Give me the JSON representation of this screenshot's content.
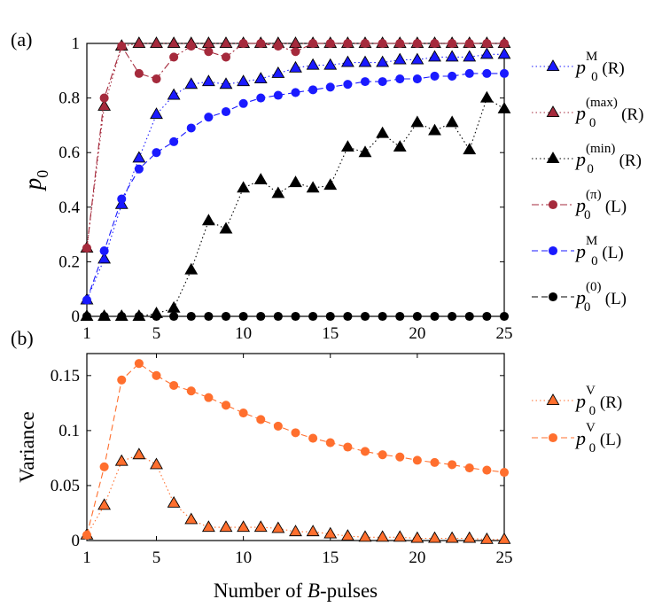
{
  "chart_data": [
    {
      "type": "line",
      "panel_label": "(a)",
      "xlabel": "",
      "ylabel_main": "p",
      "ylabel_sub": "0",
      "xlim": [
        1,
        25
      ],
      "ylim": [
        0,
        1
      ],
      "xticks": [
        1,
        5,
        10,
        15,
        20,
        25
      ],
      "yticks": [
        0,
        0.2,
        0.4,
        0.6,
        0.8,
        1
      ],
      "ytick_labels": [
        "0",
        "0.2",
        "0.4",
        "0.6",
        "0.8",
        "1"
      ],
      "series": [
        {
          "name": "p0^M (R)",
          "main": "p",
          "sub": "0",
          "sup": "M",
          "tag": "(R)",
          "color": "#1a1aff",
          "marker": "triangle",
          "line": "dotted",
          "x": [
            1,
            2,
            3,
            4,
            5,
            6,
            7,
            8,
            9,
            10,
            11,
            12,
            13,
            14,
            15,
            16,
            17,
            18,
            19,
            20,
            21,
            22,
            23,
            24,
            25
          ],
          "values": [
            0.06,
            0.21,
            0.41,
            0.58,
            0.74,
            0.81,
            0.85,
            0.86,
            0.85,
            0.86,
            0.87,
            0.89,
            0.91,
            0.92,
            0.92,
            0.93,
            0.93,
            0.93,
            0.94,
            0.94,
            0.95,
            0.95,
            0.95,
            0.96,
            0.96
          ]
        },
        {
          "name": "p0^(max) (R)",
          "main": "p",
          "sub": "0",
          "sup": "(max)",
          "tag": "(R)",
          "color": "#a52a3c",
          "marker": "triangle",
          "line": "dotted",
          "x": [
            1,
            2,
            3,
            4,
            5,
            6,
            7,
            8,
            9,
            10,
            11,
            12,
            13,
            14,
            15,
            16,
            17,
            18,
            19,
            20,
            21,
            22,
            23,
            24,
            25
          ],
          "values": [
            0.25,
            0.77,
            0.99,
            1,
            1,
            1,
            1,
            1,
            1,
            1,
            1,
            1,
            1,
            1,
            1,
            1,
            1,
            1,
            1,
            1,
            1,
            1,
            1,
            1,
            1
          ]
        },
        {
          "name": "p0^(min) (R)",
          "main": "p",
          "sub": "0",
          "sup": "(min)",
          "tag": "(R)",
          "color": "#000000",
          "marker": "triangle",
          "line": "dotted",
          "x": [
            1,
            2,
            3,
            4,
            5,
            6,
            7,
            8,
            9,
            10,
            11,
            12,
            13,
            14,
            15,
            16,
            17,
            18,
            19,
            20,
            21,
            22,
            23,
            24,
            25
          ],
          "values": [
            0,
            0,
            0,
            0,
            0.01,
            0.03,
            0.17,
            0.35,
            0.32,
            0.47,
            0.5,
            0.45,
            0.49,
            0.47,
            0.48,
            0.62,
            0.6,
            0.67,
            0.62,
            0.71,
            0.68,
            0.71,
            0.61,
            0.8,
            0.76
          ]
        },
        {
          "name": "p0^(pi) (L)",
          "main": "p",
          "sub": "0",
          "sup": "(π)",
          "tag": "(L)",
          "color": "#a52a3c",
          "marker": "circle",
          "line": "dashdot",
          "x": [
            1,
            2,
            3,
            4,
            5,
            6,
            7,
            8,
            9,
            10,
            11,
            12,
            13,
            14,
            15,
            16,
            17,
            18,
            19,
            20,
            21,
            22,
            23,
            24,
            25
          ],
          "values": [
            0.25,
            0.8,
            0.99,
            0.89,
            0.87,
            0.95,
            0.99,
            0.97,
            0.95,
            1,
            1,
            0.99,
            0.97,
            1,
            1,
            1,
            1,
            1,
            1,
            1,
            1,
            1,
            1,
            1,
            1
          ]
        },
        {
          "name": "p0^M (L)",
          "main": "p",
          "sub": "0",
          "sup": "M",
          "tag": "(L)",
          "color": "#1a1aff",
          "marker": "circle",
          "line": "dashed",
          "x": [
            1,
            2,
            3,
            4,
            5,
            6,
            7,
            8,
            9,
            10,
            11,
            12,
            13,
            14,
            15,
            16,
            17,
            18,
            19,
            20,
            21,
            22,
            23,
            24,
            25
          ],
          "values": [
            0.06,
            0.24,
            0.43,
            0.54,
            0.6,
            0.64,
            0.69,
            0.73,
            0.75,
            0.78,
            0.8,
            0.81,
            0.82,
            0.83,
            0.84,
            0.85,
            0.86,
            0.86,
            0.87,
            0.87,
            0.88,
            0.88,
            0.89,
            0.89,
            0.89
          ]
        },
        {
          "name": "p0^(0) (L)",
          "main": "p",
          "sub": "0",
          "sup": "(0)",
          "tag": "(L)",
          "color": "#000000",
          "marker": "circle",
          "line": "dashed",
          "x": [
            1,
            2,
            3,
            4,
            5,
            6,
            7,
            8,
            9,
            10,
            11,
            12,
            13,
            14,
            15,
            16,
            17,
            18,
            19,
            20,
            21,
            22,
            23,
            24,
            25
          ],
          "values": [
            0,
            0,
            0,
            0,
            0,
            0,
            0,
            0,
            0,
            0,
            0,
            0,
            0,
            0,
            0,
            0,
            0,
            0,
            0,
            0,
            0,
            0,
            0,
            0,
            0
          ]
        }
      ]
    },
    {
      "type": "line",
      "panel_label": "(b)",
      "xlabel": "Number of B-pulses",
      "xlabel_pre": "Number of ",
      "xlabel_it": "B",
      "xlabel_post": "-pulses",
      "ylabel": "Variance",
      "xlim": [
        1,
        25
      ],
      "ylim": [
        0,
        0.17
      ],
      "xticks": [
        1,
        5,
        10,
        15,
        20,
        25
      ],
      "yticks": [
        0,
        0.05,
        0.1,
        0.15
      ],
      "ytick_labels": [
        "0",
        "0.05",
        "0.1",
        "0.15"
      ],
      "series": [
        {
          "name": "p0^V (R)",
          "main": "p",
          "sub": "0",
          "sup": "V",
          "tag": "(R)",
          "color": "#ff6f2e",
          "marker": "triangle",
          "line": "dotted",
          "x": [
            1,
            2,
            3,
            4,
            5,
            6,
            7,
            8,
            9,
            10,
            11,
            12,
            13,
            14,
            15,
            16,
            17,
            18,
            19,
            20,
            21,
            22,
            23,
            24,
            25
          ],
          "values": [
            0.005,
            0.032,
            0.072,
            0.078,
            0.069,
            0.034,
            0.019,
            0.012,
            0.012,
            0.012,
            0.012,
            0.011,
            0.008,
            0.008,
            0.006,
            0.004,
            0.003,
            0.003,
            0.003,
            0.002,
            0.002,
            0.002,
            0.002,
            0.001,
            0.001
          ]
        },
        {
          "name": "p0^V (L)",
          "main": "p",
          "sub": "0",
          "sup": "V",
          "tag": "(L)",
          "color": "#ff6f2e",
          "marker": "circle",
          "line": "dashed",
          "x": [
            1,
            2,
            3,
            4,
            5,
            6,
            7,
            8,
            9,
            10,
            11,
            12,
            13,
            14,
            15,
            16,
            17,
            18,
            19,
            20,
            21,
            22,
            23,
            24,
            25
          ],
          "values": [
            0.005,
            0.067,
            0.146,
            0.161,
            0.15,
            0.141,
            0.136,
            0.13,
            0.123,
            0.116,
            0.11,
            0.104,
            0.098,
            0.093,
            0.089,
            0.085,
            0.081,
            0.078,
            0.076,
            0.073,
            0.071,
            0.069,
            0.066,
            0.064,
            0.062
          ]
        }
      ]
    }
  ]
}
